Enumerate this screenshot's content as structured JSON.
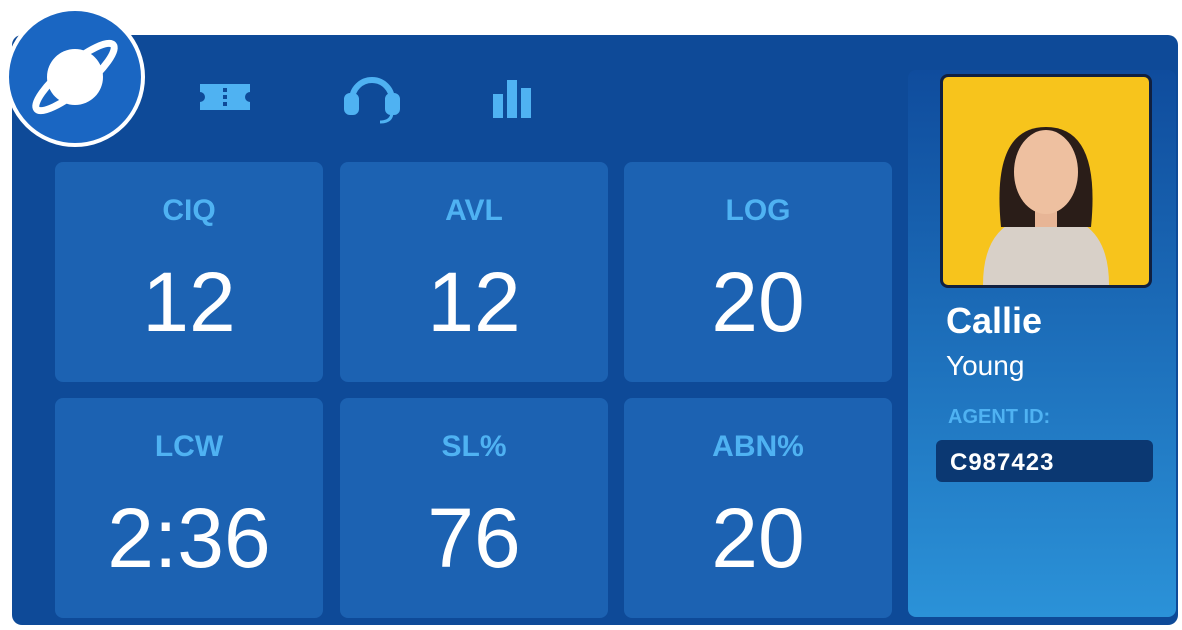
{
  "tiles": [
    {
      "label": "CIQ",
      "value": 12
    },
    {
      "label": "AVL",
      "value": 12
    },
    {
      "label": "LOG",
      "value": 20
    },
    {
      "label": "LCW",
      "value": "2:36"
    },
    {
      "label": "SL%",
      "value": 76
    },
    {
      "label": "ABN%",
      "value": 20
    }
  ],
  "agent": {
    "first_name": "Callie",
    "last_name": "Young",
    "id_label": "AGENT ID:",
    "id": "C987423"
  }
}
